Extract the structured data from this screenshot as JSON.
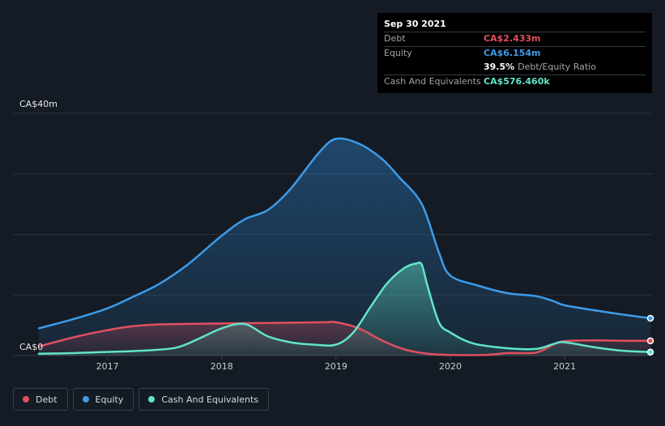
{
  "tooltip": {
    "date": "Sep 30 2021",
    "rows": [
      {
        "label": "Debt",
        "value": "CA$2.433m",
        "color": "#e0505f"
      },
      {
        "label": "Equity",
        "value": "CA$6.154m",
        "color": "#3d9be9"
      },
      {
        "label": "",
        "value": "39.5%",
        "suffix": "Debt/Equity Ratio",
        "color": "#ffffff"
      },
      {
        "label": "Cash And Equivalents",
        "value": "CA$576.460k",
        "color": "#62e5c7"
      }
    ]
  },
  "legend": [
    {
      "label": "Debt",
      "color": "#e0505f"
    },
    {
      "label": "Equity",
      "color": "#3d9be9"
    },
    {
      "label": "Cash And Equivalents",
      "color": "#62e5c7"
    }
  ],
  "chart_data": {
    "type": "area",
    "y_unit": "CA$m",
    "ylim": [
      0,
      40
    ],
    "y_tick_labels": [
      "CA$0",
      "CA$40m"
    ],
    "xlim": [
      2016.4,
      2021.75
    ],
    "x_ticks": [
      2017,
      2018,
      2019,
      2020,
      2021
    ],
    "grid": true,
    "legend_position": "bottom-left",
    "series": [
      {
        "name": "Debt",
        "color": "#e0505f",
        "x": [
          2016.4,
          2016.7,
          2017.0,
          2017.2,
          2017.4,
          2017.6,
          2018.0,
          2018.5,
          2018.9,
          2019.0,
          2019.2,
          2019.4,
          2019.6,
          2019.8,
          2020.0,
          2020.3,
          2020.5,
          2020.75,
          2020.9,
          2021.0,
          2021.25,
          2021.5,
          2021.75
        ],
        "y": [
          1.5,
          3.0,
          4.2,
          4.8,
          5.1,
          5.2,
          5.3,
          5.4,
          5.5,
          5.5,
          4.5,
          2.5,
          1.0,
          0.3,
          0.1,
          0.1,
          0.4,
          0.5,
          1.8,
          2.4,
          2.5,
          2.45,
          2.433
        ]
      },
      {
        "name": "Equity",
        "color": "#3d9be9",
        "x": [
          2016.4,
          2016.7,
          2017.0,
          2017.2,
          2017.45,
          2017.7,
          2018.0,
          2018.2,
          2018.4,
          2018.6,
          2018.85,
          2019.0,
          2019.2,
          2019.4,
          2019.55,
          2019.75,
          2019.9,
          2020.0,
          2020.25,
          2020.5,
          2020.75,
          2020.9,
          2021.0,
          2021.25,
          2021.5,
          2021.75
        ],
        "y": [
          4.5,
          6.0,
          7.8,
          9.5,
          11.8,
          15.0,
          19.8,
          22.5,
          24.0,
          27.5,
          33.5,
          35.8,
          35.0,
          32.5,
          29.5,
          25.0,
          17.0,
          13.2,
          11.5,
          10.3,
          9.8,
          9.0,
          8.3,
          7.5,
          6.8,
          6.154
        ]
      },
      {
        "name": "Cash And Equivalents",
        "color": "#62e5c7",
        "x": [
          2016.4,
          2016.7,
          2017.0,
          2017.3,
          2017.6,
          2017.8,
          2018.0,
          2018.2,
          2018.4,
          2018.6,
          2018.8,
          2019.0,
          2019.15,
          2019.3,
          2019.45,
          2019.6,
          2019.7,
          2019.75,
          2019.8,
          2019.9,
          2020.0,
          2020.2,
          2020.5,
          2020.75,
          2020.9,
          2021.0,
          2021.25,
          2021.5,
          2021.75
        ],
        "y": [
          0.3,
          0.4,
          0.6,
          0.8,
          1.3,
          2.8,
          4.5,
          5.2,
          3.2,
          2.2,
          1.8,
          1.8,
          3.8,
          8.0,
          12.0,
          14.5,
          15.2,
          15.0,
          11.5,
          5.5,
          3.8,
          2.0,
          1.2,
          1.1,
          1.9,
          2.2,
          1.4,
          0.8,
          0.576
        ]
      }
    ]
  }
}
